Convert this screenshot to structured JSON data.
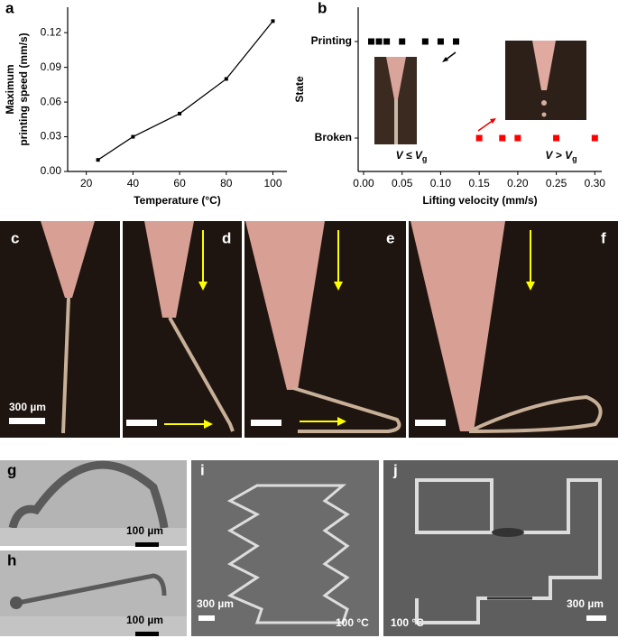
{
  "chart_data": [
    {
      "type": "line",
      "panel": "a",
      "x": [
        25,
        40,
        60,
        80,
        100
      ],
      "values": [
        0.01,
        0.03,
        0.05,
        0.08,
        0.13
      ],
      "color": "#000000",
      "xlabel": "Temperature (°C)",
      "ylabel_lines": [
        "Maximum",
        "printing speed (mm/s)"
      ],
      "xlim": [
        12,
        106
      ],
      "xticks": [
        20,
        40,
        60,
        80,
        100
      ],
      "ylim": [
        0,
        0.142
      ],
      "yticks": [
        {
          "value": 0,
          "label": "0.00"
        },
        0.03,
        0.06,
        0.09,
        0.12
      ]
    },
    {
      "type": "scatter",
      "panel": "b",
      "xlabel": "Lifting velocity (mm/s)",
      "ylabel": "State",
      "categories": [
        "Printing",
        "Broken"
      ],
      "series": [
        {
          "name": "Printing",
          "color": "#000000",
          "x": [
            0.01,
            0.02,
            0.03,
            0.05,
            0.08,
            0.1,
            0.12
          ]
        },
        {
          "name": "Broken",
          "color": "#ff0000",
          "x": [
            0.15,
            0.18,
            0.2,
            0.25,
            0.3
          ]
        }
      ],
      "xlim": [
        -0.007,
        0.309
      ],
      "xticks": [
        {
          "value": 0,
          "label": "0.00"
        },
        0.05,
        {
          "value": 0.1,
          "label": "0.10"
        },
        0.15,
        {
          "value": 0.2,
          "label": "0.20"
        },
        0.25,
        {
          "value": 0.3,
          "label": "0.30"
        }
      ],
      "insets": [
        {
          "main": "V ≤ V",
          "sub": "g"
        },
        {
          "main": "V > V",
          "sub": "g"
        }
      ]
    }
  ],
  "panels": {
    "c": "c",
    "d": "d",
    "e": "e",
    "f": "f",
    "g": "g",
    "h": "h",
    "i": "i",
    "j": "j",
    "scale_c": "300 µm",
    "scale_g": "100 µm",
    "scale_h": "100 µm",
    "scale_i": "300 µm",
    "temp_i": "100 °C",
    "temp_j": "100 °C",
    "scale_j": "300 µm"
  }
}
